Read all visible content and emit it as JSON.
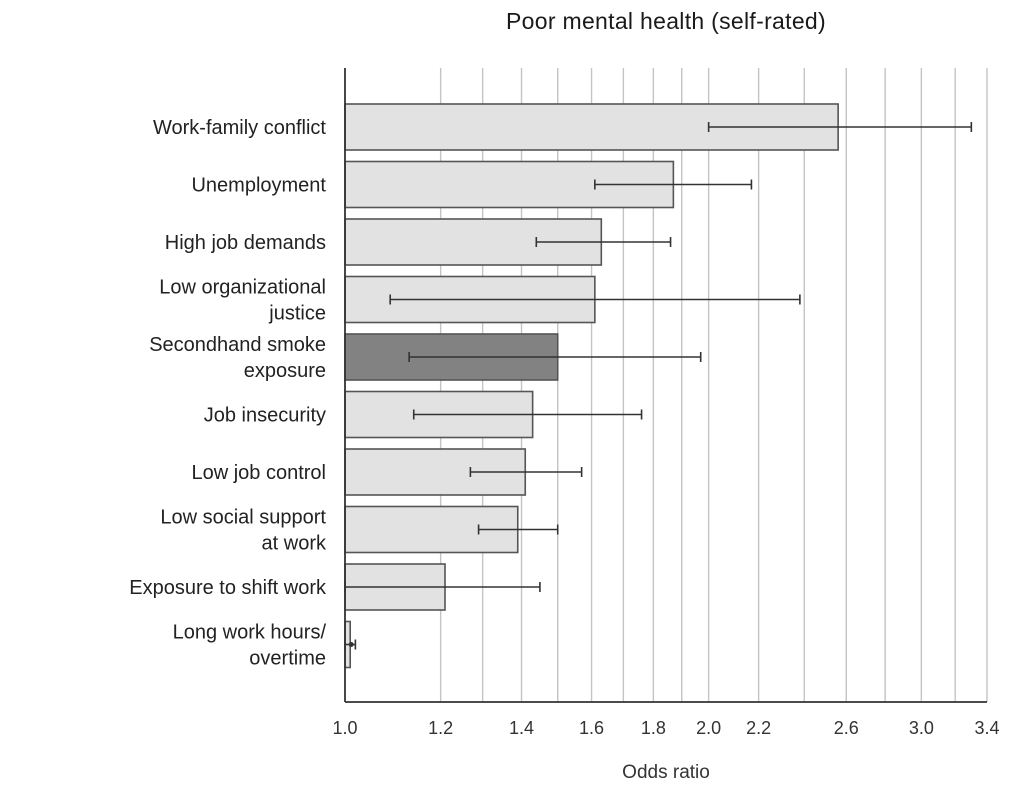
{
  "chart_data": {
    "type": "bar",
    "orientation": "horizontal",
    "title": "Poor mental health (self-rated)",
    "xlabel": "Odds ratio",
    "ylabel": "",
    "x_scale": "log",
    "xlim": [
      1.0,
      3.4
    ],
    "x_ticks": [
      1.0,
      1.2,
      1.4,
      1.6,
      1.8,
      2.0,
      2.2,
      2.6,
      3.0,
      3.4
    ],
    "x_tick_labels": [
      "1.0",
      "1.2",
      "1.4",
      "1.6",
      "1.8",
      "2.0",
      "2.2",
      "2.6",
      "3.0",
      "3.4"
    ],
    "grid_lines": [
      1.2,
      1.3,
      1.4,
      1.5,
      1.6,
      1.7,
      1.8,
      1.9,
      2.0,
      2.2,
      2.4,
      2.6,
      2.8,
      3.0,
      3.2,
      3.4
    ],
    "grid": true,
    "categories": [
      [
        "Work-family conflict"
      ],
      [
        "Unemployment"
      ],
      [
        "High job demands"
      ],
      [
        "Low organizational",
        "justice"
      ],
      [
        "Secondhand smoke",
        "exposure"
      ],
      [
        "Job insecurity"
      ],
      [
        "Low job control"
      ],
      [
        "Low social support",
        "at work"
      ],
      [
        "Exposure to shift work"
      ],
      [
        "Long work hours/",
        "overtime"
      ]
    ],
    "values": [
      2.56,
      1.87,
      1.63,
      1.61,
      1.5,
      1.43,
      1.41,
      1.39,
      1.21,
      1.01
    ],
    "ci_low": [
      2.0,
      1.61,
      1.44,
      1.09,
      1.13,
      1.14,
      1.27,
      1.29,
      1.0,
      1.0
    ],
    "ci_high": [
      3.3,
      2.17,
      1.86,
      2.38,
      1.97,
      1.76,
      1.57,
      1.5,
      1.45,
      1.02
    ],
    "highlight_index": 4,
    "colors": {
      "bar_fill": "#e2e2e2",
      "bar_stroke": "#555555",
      "highlight_fill": "#828282",
      "grid": "#c4c4c4",
      "axis": "#333333",
      "error_bar": "#333333"
    }
  }
}
